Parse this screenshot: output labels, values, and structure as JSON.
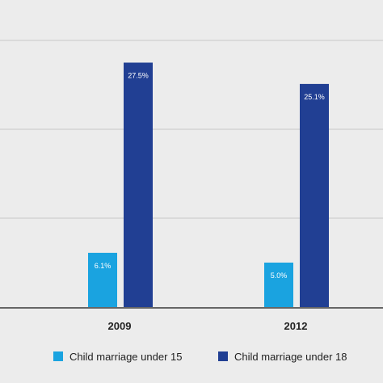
{
  "chart_data": {
    "type": "bar",
    "categories": [
      "2009",
      "2012"
    ],
    "series": [
      {
        "name": "Child marriage under 15",
        "values": [
          6.1,
          5.0
        ],
        "labels": [
          "6.1%",
          "5.0%"
        ],
        "color": "#1aa3e0"
      },
      {
        "name": "Child marriage under 18",
        "values": [
          27.5,
          25.1
        ],
        "labels": [
          "27.5%",
          "25.1%"
        ],
        "color": "#213f93"
      }
    ],
    "ylim": [
      0,
      30
    ],
    "y_gridlines": [
      0,
      10,
      20,
      30
    ],
    "grid": true,
    "legend_position": "bottom"
  }
}
